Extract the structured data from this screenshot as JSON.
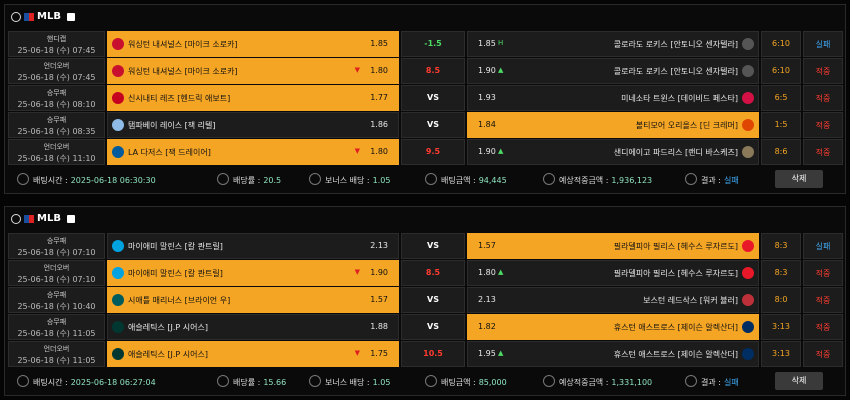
{
  "panels": [
    {
      "league": "MLB",
      "rows": [
        {
          "type": "핸디캡",
          "date": "25-06-18 (수) 07:45",
          "home": "워싱턴 내셔널스 [마이크 소로카]",
          "home_odds": "1.85",
          "middle": "-1.5",
          "middle_color": "#4cd964",
          "away_odds": "1.85",
          "away_mark": "H",
          "away": "콜로라도 로키스 [안토니오 센자텔라]",
          "score": "6:10",
          "result": "실패",
          "result_color": "#3fa9f5",
          "pick": "home",
          "home_logo": "#c8102e",
          "away_logo": "#555555"
        },
        {
          "type": "언더오버",
          "date": "25-06-18 (수) 07:45",
          "home": "워싱턴 내셔널스 [마이크 소로카]",
          "home_arrow": "▼",
          "home_odds": "1.80",
          "middle": "8.5",
          "middle_color": "#ff3b30",
          "away_odds": "1.90",
          "away_mark": "▲",
          "away": "콜로라도 로키스 [안토니오 센자텔라]",
          "score": "6:10",
          "result": "적중",
          "result_color": "#ff3b30",
          "pick": "home",
          "home_logo": "#c8102e",
          "away_logo": "#555555"
        },
        {
          "type": "승무패",
          "date": "25-06-18 (수) 08:10",
          "home": "신시내티 레즈 [헨드릭 애보트]",
          "home_odds": "1.77",
          "middle": "VS",
          "middle_color": "#ffffff",
          "away_odds": "1.93",
          "away": "미네소타 트윈스 [데이비드 페스타]",
          "score": "6:5",
          "result": "적중",
          "result_color": "#ff3b30",
          "pick": "home",
          "home_logo": "#c6011f",
          "away_logo": "#d31145"
        },
        {
          "type": "승무패",
          "date": "25-06-18 (수) 08:35",
          "home": "탬파베이 레이스 [잭 리텔]",
          "home_odds": "1.86",
          "middle": "VS",
          "middle_color": "#ffffff",
          "away_odds": "1.84",
          "away": "볼티모어 오리올스 [딘 크레머]",
          "score": "1:5",
          "result": "적중",
          "result_color": "#ff3b30",
          "pick": "away",
          "home_logo": "#8fbce6",
          "away_logo": "#df4601"
        },
        {
          "type": "언더오버",
          "date": "25-06-18 (수) 11:10",
          "home": "LA 다저스 [잭 드레이어]",
          "home_arrow": "▼",
          "home_odds": "1.80",
          "middle": "9.5",
          "middle_color": "#ff3b30",
          "away_odds": "1.90",
          "away_mark": "▲",
          "away": "샌디에이고 파드리스 [랜디 바스케즈]",
          "score": "8:6",
          "result": "적중",
          "result_color": "#ff3b30",
          "pick": "home",
          "home_logo": "#005a9c",
          "away_logo": "#8a7a5a"
        }
      ],
      "footer": [
        {
          "label": "배팅시간 :",
          "value": "2025-06-18 06:30:30"
        },
        {
          "label": "배당률 :",
          "value": "20.5"
        },
        {
          "label": "보너스 배당 :",
          "value": "1.05"
        },
        {
          "label": "배팅금액 :",
          "value": "94,445"
        },
        {
          "label": "예상적중금액 :",
          "value": "1,936,123"
        },
        {
          "label": "결과 :",
          "value": "실패"
        }
      ],
      "delete": "삭제"
    },
    {
      "league": "MLB",
      "rows": [
        {
          "type": "승무패",
          "date": "25-06-18 (수) 07:10",
          "home": "마이애미 말린스 [칼 콴트릴]",
          "home_odds": "2.13",
          "middle": "VS",
          "middle_color": "#ffffff",
          "away_odds": "1.57",
          "away": "필라델피아 필리스 [헤수스 루자르도]",
          "score": "8:3",
          "result": "실패",
          "result_color": "#3fa9f5",
          "pick": "away",
          "home_logo": "#00a3e0",
          "away_logo": "#e81828"
        },
        {
          "type": "언더오버",
          "date": "25-06-18 (수) 07:10",
          "home": "마이애미 말린스 [칼 콴트릴]",
          "home_arrow": "▼",
          "home_odds": "1.90",
          "middle": "8.5",
          "middle_color": "#ff3b30",
          "away_odds": "1.80",
          "away_mark": "▲",
          "away": "필라델피아 필리스 [헤수스 루자르도]",
          "score": "8:3",
          "result": "적중",
          "result_color": "#ff3b30",
          "pick": "home",
          "home_logo": "#00a3e0",
          "away_logo": "#e81828"
        },
        {
          "type": "승무패",
          "date": "25-06-18 (수) 10:40",
          "home": "시애틀 매리너스 [브라이언 우]",
          "home_odds": "1.57",
          "middle": "VS",
          "middle_color": "#ffffff",
          "away_odds": "2.13",
          "away": "보스턴 레드삭스 [워커 뷸러]",
          "score": "8:0",
          "result": "적중",
          "result_color": "#ff3b30",
          "pick": "home",
          "home_logo": "#005c5c",
          "away_logo": "#bd3039"
        },
        {
          "type": "승무패",
          "date": "25-06-18 (수) 11:05",
          "home": "애슬레틱스 [J.P 시어스]",
          "home_odds": "1.88",
          "middle": "VS",
          "middle_color": "#ffffff",
          "away_odds": "1.82",
          "away": "휴스턴 애스트로스 [제이슨 알렉산더]",
          "score": "3:13",
          "result": "적중",
          "result_color": "#ff3b30",
          "pick": "away",
          "home_logo": "#003831",
          "away_logo": "#002d62"
        },
        {
          "type": "언더오버",
          "date": "25-06-18 (수) 11:05",
          "home": "애슬레틱스 [J.P 시어스]",
          "home_arrow": "▼",
          "home_odds": "1.75",
          "middle": "10.5",
          "middle_color": "#ff3b30",
          "away_odds": "1.95",
          "away_mark": "▲",
          "away": "휴스턴 애스트로스 [제이슨 알렉산더]",
          "score": "3:13",
          "result": "적중",
          "result_color": "#ff3b30",
          "pick": "home",
          "home_logo": "#003831",
          "away_logo": "#002d62"
        }
      ],
      "footer": [
        {
          "label": "배팅시간 :",
          "value": "2025-06-18 06:27:04"
        },
        {
          "label": "배당률 :",
          "value": "15.66"
        },
        {
          "label": "보너스 배당 :",
          "value": "1.05"
        },
        {
          "label": "배팅금액 :",
          "value": "85,000"
        },
        {
          "label": "예상적중금액 :",
          "value": "1,331,100"
        },
        {
          "label": "결과 :",
          "value": "실패"
        }
      ],
      "delete": "삭제"
    }
  ]
}
